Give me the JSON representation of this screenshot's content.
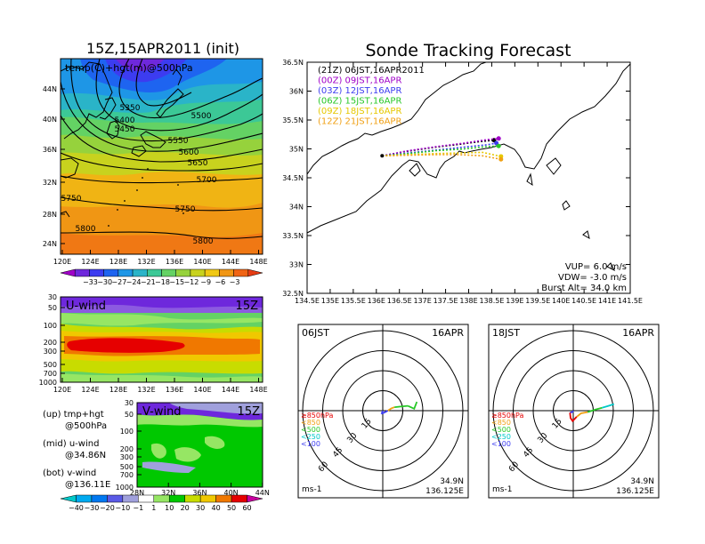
{
  "left": {
    "title": "15Z,15APR2011 (init)",
    "map_panel": {
      "label": "temp(C)+hgt(m)@500hPa",
      "lat_ticks": [
        "44N",
        "40N",
        "36N",
        "32N",
        "28N",
        "24N"
      ],
      "lon_ticks": [
        "120E",
        "124E",
        "128E",
        "132E",
        "136E",
        "140E",
        "144E",
        "148E"
      ],
      "contour_labels": [
        "5350",
        "5400",
        "5450",
        "5500",
        "5550",
        "5600",
        "5650",
        "5700",
        "5750",
        "5750",
        "5800",
        "5800"
      ],
      "colorbar_labels": [
        "−33",
        "−30",
        "−27",
        "−24",
        "−21",
        "−18",
        "−15",
        "−12",
        "−9",
        "−6",
        "−3"
      ],
      "colorbar_colors": [
        "#a000c8",
        "#6e28dc",
        "#3c3cf0",
        "#1e64f0",
        "#1e96e6",
        "#2ab4c8",
        "#3cc896",
        "#64d264",
        "#96d23c",
        "#c8d21e",
        "#f0c814",
        "#f09614",
        "#f06414",
        "#e63c14"
      ]
    },
    "u_panel": {
      "label": "U-wind",
      "time": "15Z",
      "p_ticks": [
        "30",
        "50",
        "100",
        "200",
        "300",
        "500",
        "700",
        "1000"
      ],
      "lon_ticks": [
        "120E",
        "124E",
        "128E",
        "132E",
        "136E",
        "140E",
        "144E",
        "148E"
      ]
    },
    "v_panel": {
      "label": "V-wind",
      "time": "15Z",
      "p_ticks": [
        "30",
        "50",
        "100",
        "200",
        "300",
        "500",
        "700",
        "1000"
      ],
      "lat_ticks": [
        "28N",
        "32N",
        "36N",
        "40N",
        "44N"
      ]
    },
    "notes": [
      {
        "a": "(up) tmp+hgt",
        "b": "@500hPa"
      },
      {
        "a": "(mid) u-wind",
        "b": "@34.86N"
      },
      {
        "a": "(bot) v-wind",
        "b": "@136.11E"
      }
    ],
    "wind_colorbar_labels": [
      "−40",
      "−30",
      "−20",
      "−10",
      "−1",
      "1",
      "10",
      "20",
      "30",
      "40",
      "50",
      "60"
    ],
    "wind_colorbar_colors": [
      "#00c8c8",
      "#00aaf0",
      "#0078f0",
      "#5a5ae6",
      "#a0a0dc",
      "#ffffff",
      "#96e664",
      "#00c800",
      "#c8dc00",
      "#f0c800",
      "#f07800",
      "#e60000",
      "#c800a0"
    ]
  },
  "right": {
    "title": "Sonde Tracking Forecast",
    "legend": [
      {
        "label": "(21Z)  06JST,16APR2011",
        "color": "#000000"
      },
      {
        "label": "(00Z)  09JST,16APR",
        "color": "#a000c8"
      },
      {
        "label": "(03Z)  12JST,16APR",
        "color": "#3c3cf0"
      },
      {
        "label": "(06Z)  15JST,16APR",
        "color": "#28c828"
      },
      {
        "label": "(09Z)  18JST,16APR",
        "color": "#e6c800"
      },
      {
        "label": "(12Z)  21JST,16APR",
        "color": "#f0a014"
      }
    ],
    "lat_ticks": [
      "36.5N",
      "36N",
      "35.5N",
      "35N",
      "34.5N",
      "34N",
      "33.5N",
      "33N",
      "32.5N"
    ],
    "lon_ticks": [
      "134.5E",
      "135E",
      "135.5E",
      "136E",
      "136.5E",
      "137E",
      "137.5E",
      "138E",
      "138.5E",
      "139E",
      "139.5E",
      "140E",
      "140.5E",
      "141E",
      "141.5E"
    ],
    "params": [
      "VUP=  6.0  m/s",
      "VDW= -3.0  m/s",
      "Burst Alt=  34.0  km"
    ]
  },
  "polar": [
    {
      "time": "06JST",
      "date": "16APR",
      "unit": "ms-1",
      "lat": "34.9N",
      "lon": "136.125E"
    },
    {
      "time": "18JST",
      "date": "16APR",
      "unit": "ms-1",
      "lat": "34.9N",
      "lon": "136.125E"
    }
  ],
  "polar_rings": [
    "15",
    "30",
    "45",
    "60"
  ],
  "polar_legend": [
    {
      "label": "≥850hPa",
      "color": "#e60000"
    },
    {
      "label": "<850",
      "color": "#f0a014"
    },
    {
      "label": "<500",
      "color": "#28c828"
    },
    {
      "label": "<250",
      "color": "#00c8c8"
    },
    {
      "label": "<100",
      "color": "#3c3cf0"
    }
  ],
  "chart_data": [
    {
      "type": "heatmap",
      "title": "15Z,15APR2011 (init)",
      "annotation": "temp(C)+hgt(m)@500hPa",
      "x": [
        "120E",
        "124E",
        "128E",
        "132E",
        "136E",
        "140E",
        "144E",
        "148E"
      ],
      "y": [
        "24N",
        "28N",
        "32N",
        "36N",
        "40N",
        "44N"
      ],
      "contours": [
        5350,
        5400,
        5450,
        5500,
        5550,
        5600,
        5650,
        5700,
        5750,
        5800
      ],
      "color_levels": [
        -33,
        -30,
        -27,
        -24,
        -21,
        -18,
        -15,
        -12,
        -9,
        -6,
        -3
      ]
    },
    {
      "type": "heatmap",
      "annotation": "U-wind",
      "x": [
        "120E",
        "124E",
        "128E",
        "132E",
        "136E",
        "140E",
        "144E",
        "148E"
      ],
      "y": [
        1000,
        700,
        500,
        300,
        200,
        100,
        50,
        30
      ],
      "color_levels": [
        -40,
        -30,
        -20,
        -10,
        -1,
        1,
        10,
        20,
        30,
        40,
        50,
        60
      ]
    },
    {
      "type": "heatmap",
      "annotation": "V-wind",
      "x": [
        "28N",
        "32N",
        "36N",
        "40N",
        "44N"
      ],
      "y": [
        1000,
        700,
        500,
        300,
        200,
        100,
        50,
        30
      ],
      "color_levels": [
        -40,
        -30,
        -20,
        -10,
        -1,
        1,
        10,
        20,
        30,
        40,
        50,
        60
      ]
    },
    {
      "type": "line",
      "title": "Sonde Tracking Forecast",
      "xlim": [
        134.5,
        141.5
      ],
      "ylim": [
        32.5,
        36.5
      ],
      "series": [
        {
          "name": "(21Z)  06JST,16APR2011",
          "points": [
            [
              136.125,
              34.88
            ],
            [
              136.6,
              34.95
            ],
            [
              137.2,
              35.02
            ],
            [
              137.8,
              35.08
            ],
            [
              138.3,
              35.13
            ],
            [
              138.55,
              35.15
            ]
          ]
        },
        {
          "name": "(00Z)  09JST,16APR",
          "points": [
            [
              136.125,
              34.88
            ],
            [
              136.7,
              34.97
            ],
            [
              137.3,
              35.04
            ],
            [
              137.9,
              35.1
            ],
            [
              138.4,
              35.16
            ],
            [
              138.65,
              35.18
            ]
          ]
        },
        {
          "name": "(03Z)  12JST,16APR",
          "points": [
            [
              136.125,
              34.88
            ],
            [
              136.7,
              34.93
            ],
            [
              137.3,
              34.98
            ],
            [
              137.9,
              35.03
            ],
            [
              138.4,
              35.07
            ],
            [
              138.6,
              35.1
            ]
          ]
        },
        {
          "name": "(06Z)  15JST,16APR",
          "points": [
            [
              136.125,
              34.88
            ],
            [
              136.7,
              34.92
            ],
            [
              137.3,
              34.97
            ],
            [
              137.9,
              35.0
            ],
            [
              138.4,
              35.04
            ],
            [
              138.65,
              35.05
            ]
          ]
        },
        {
          "name": "(09Z)  18JST,16APR",
          "points": [
            [
              136.125,
              34.88
            ],
            [
              136.7,
              34.9
            ],
            [
              137.3,
              34.92
            ],
            [
              137.8,
              34.93
            ],
            [
              138.3,
              34.94
            ],
            [
              138.7,
              34.87
            ]
          ]
        },
        {
          "name": "(12Z)  21JST,16APR",
          "points": [
            [
              136.125,
              34.88
            ],
            [
              136.7,
              34.89
            ],
            [
              137.3,
              34.9
            ],
            [
              137.8,
              34.9
            ],
            [
              138.3,
              34.88
            ],
            [
              138.7,
              34.82
            ]
          ]
        }
      ]
    },
    {
      "type": "line",
      "title": "06JST  16APR",
      "rings": [
        15,
        30,
        45,
        60
      ],
      "hodograph": [
        [
          0,
          0
        ],
        [
          -0.4,
          -1.2
        ],
        [
          -1.0,
          -2.4
        ],
        [
          1.5,
          -1.2
        ],
        [
          3.8,
          0.0
        ],
        [
          6.3,
          1.6
        ],
        [
          8.8,
          2.6
        ],
        [
          13.3,
          3.1
        ],
        [
          18.7,
          3.6
        ],
        [
          23.5,
          1.5
        ],
        [
          25.5,
          6.6
        ]
      ]
    },
    {
      "type": "line",
      "title": "18JST  16APR",
      "rings": [
        15,
        30,
        45,
        60
      ],
      "hodograph": [
        [
          0,
          0
        ],
        [
          -0.5,
          -1.0
        ],
        [
          -2.5,
          -1.5
        ],
        [
          -2.0,
          -5.5
        ],
        [
          -0.5,
          -7.8
        ],
        [
          2.5,
          -4.6
        ],
        [
          5.8,
          -2.0
        ],
        [
          10.8,
          -1.1
        ],
        [
          16.3,
          0.7
        ],
        [
          21.6,
          2.2
        ],
        [
          26.3,
          3.6
        ],
        [
          30.5,
          4.9
        ]
      ]
    }
  ]
}
